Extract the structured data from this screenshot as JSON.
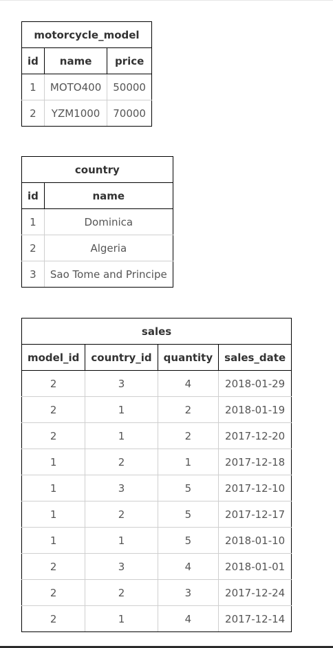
{
  "tables": {
    "motorcycle_model": {
      "title": "motorcycle_model",
      "columns": [
        "id",
        "name",
        "price"
      ],
      "rows": [
        [
          "1",
          "MOTO400",
          "50000"
        ],
        [
          "2",
          "YZM1000",
          "70000"
        ]
      ]
    },
    "country": {
      "title": "country",
      "columns": [
        "id",
        "name"
      ],
      "rows": [
        [
          "1",
          "Dominica"
        ],
        [
          "2",
          "Algeria"
        ],
        [
          "3",
          "Sao Tome and Principe"
        ]
      ]
    },
    "sales": {
      "title": "sales",
      "columns": [
        "model_id",
        "country_id",
        "quantity",
        "sales_date"
      ],
      "rows": [
        [
          "2",
          "3",
          "4",
          "2018-01-29"
        ],
        [
          "2",
          "1",
          "2",
          "2018-01-19"
        ],
        [
          "2",
          "1",
          "2",
          "2017-12-20"
        ],
        [
          "1",
          "2",
          "1",
          "2017-12-18"
        ],
        [
          "1",
          "3",
          "5",
          "2017-12-10"
        ],
        [
          "1",
          "2",
          "5",
          "2017-12-17"
        ],
        [
          "1",
          "1",
          "5",
          "2018-01-10"
        ],
        [
          "2",
          "3",
          "4",
          "2018-01-01"
        ],
        [
          "2",
          "2",
          "3",
          "2017-12-24"
        ],
        [
          "2",
          "1",
          "4",
          "2017-12-14"
        ]
      ]
    }
  }
}
